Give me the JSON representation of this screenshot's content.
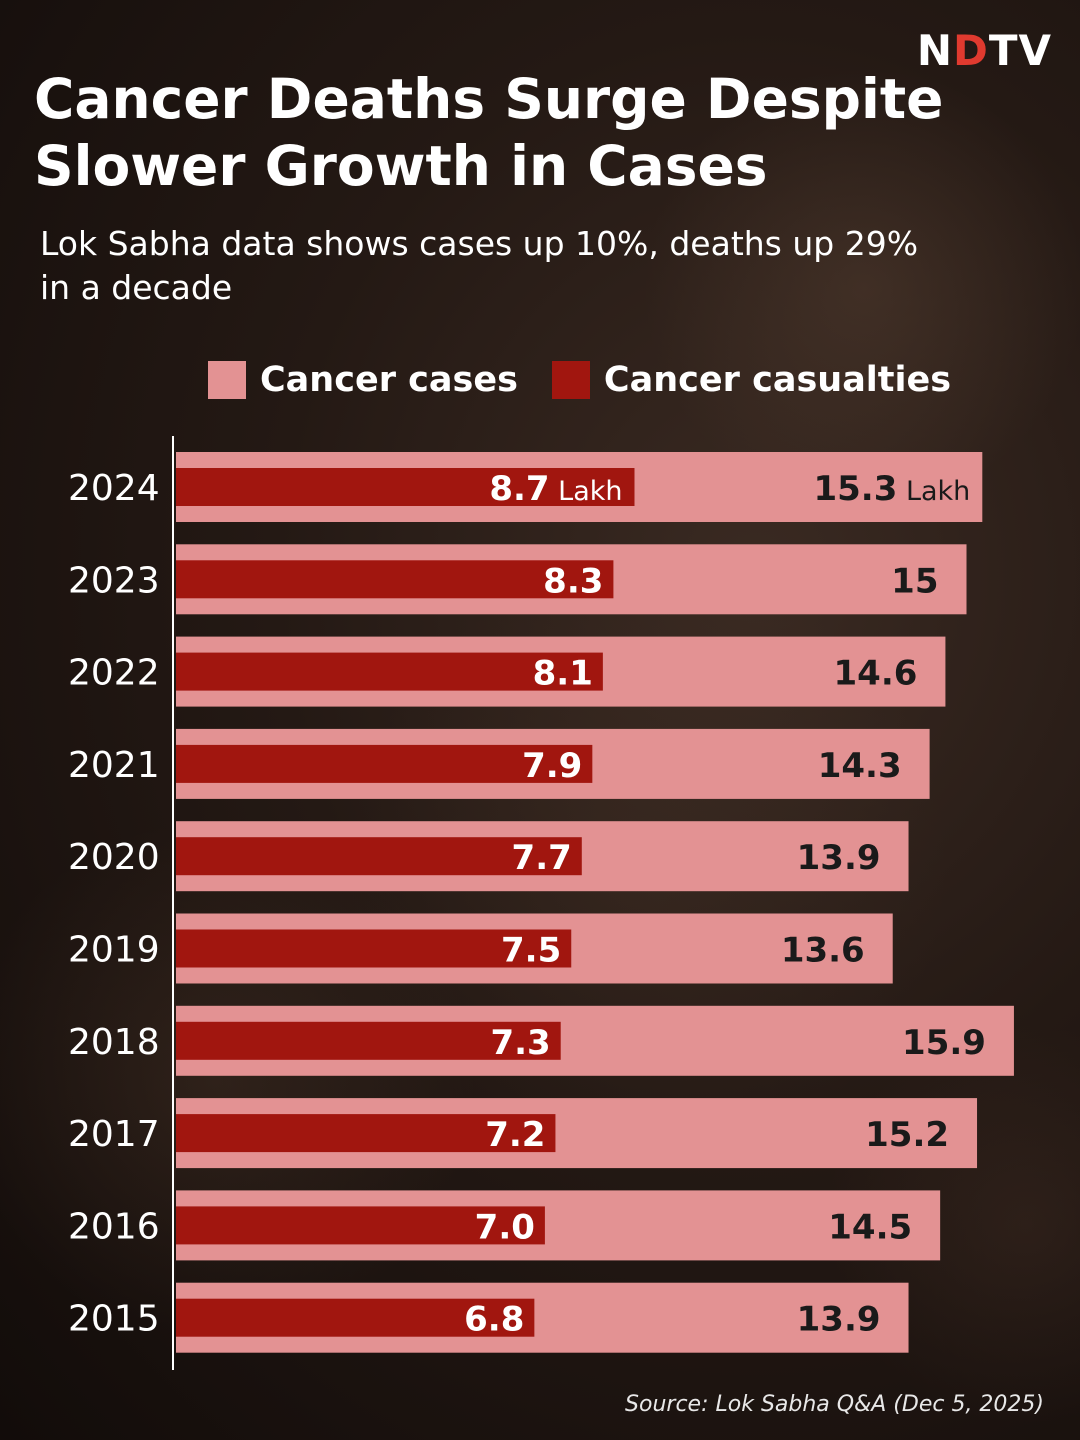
{
  "brand": {
    "name_prefix": "N",
    "name_dot": "D",
    "name_suffix": "TV"
  },
  "title": "Cancer Deaths Surge Despite Slower Growth in Cases",
  "subtitle": "Lok Sabha data shows cases up 10%, deaths up 29% in a decade",
  "source": "Source: Lok Sabha Q&A (Dec 5, 2025)",
  "colors": {
    "cases": "#e39293",
    "casualties": "#a1160f",
    "axis": "#ffffff"
  },
  "chart_data": {
    "type": "bar",
    "orientation": "horizontal",
    "layout": "overlapped",
    "categories": [
      "2024",
      "2023",
      "2022",
      "2021",
      "2020",
      "2019",
      "2018",
      "2017",
      "2016",
      "2015"
    ],
    "series": [
      {
        "name": "Cancer cases",
        "values": [
          15.3,
          15,
          14.6,
          14.3,
          13.9,
          13.6,
          15.9,
          15.2,
          14.5,
          13.9
        ],
        "labels": [
          "15.3",
          "15",
          "14.6",
          "14.3",
          "13.9",
          "13.6",
          "15.9",
          "15.2",
          "14.5",
          "13.9"
        ]
      },
      {
        "name": "Cancer casualties",
        "values": [
          8.7,
          8.3,
          8.1,
          7.9,
          7.7,
          7.5,
          7.3,
          7.2,
          7.0,
          6.8
        ],
        "labels": [
          "8.7",
          "8.3",
          "8.1",
          "7.9",
          "7.7",
          "7.5",
          "7.3",
          "7.2",
          "7.0",
          "6.8"
        ]
      }
    ],
    "unit": "Lakh",
    "xlim": [
      0,
      16
    ]
  }
}
